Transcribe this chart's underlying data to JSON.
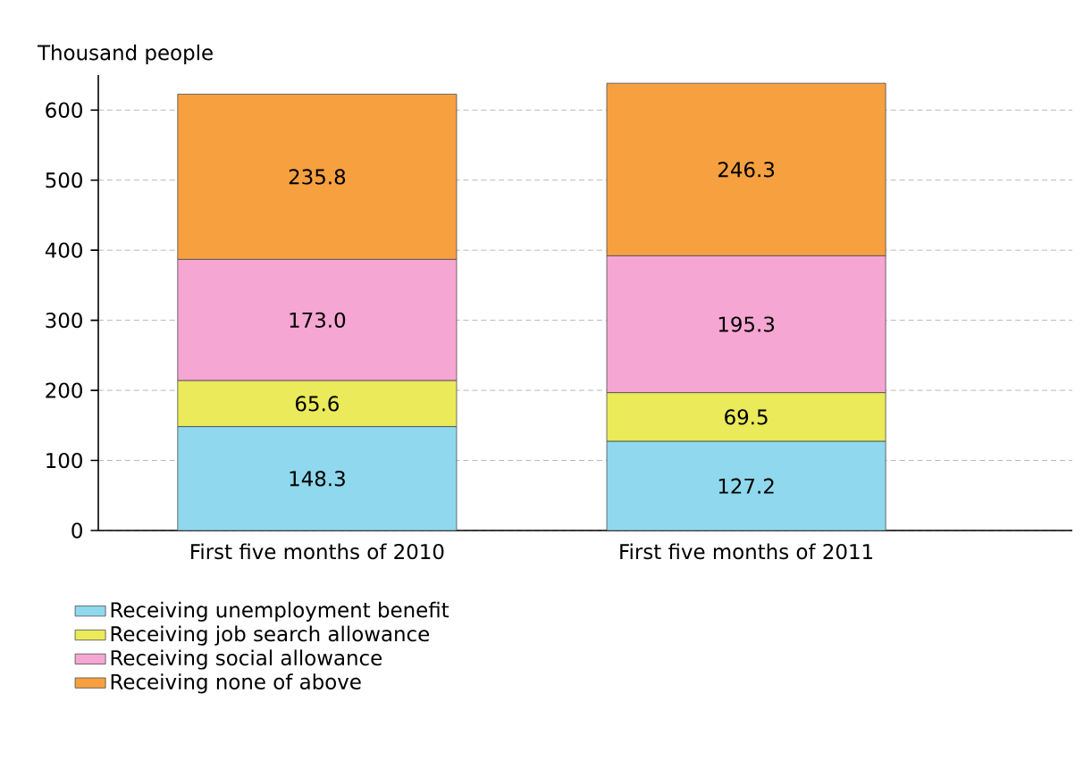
{
  "chart_data": {
    "type": "bar",
    "stacked": true,
    "ylabel": "Thousand people",
    "categories": [
      "First five months of 2010",
      "First five months of 2011"
    ],
    "series": [
      {
        "name": "Receiving unemployment benefit",
        "color": "#8fd8ee",
        "values": [
          148.3,
          127.2
        ],
        "value_labels": [
          "148.3",
          "127.2"
        ]
      },
      {
        "name": "Receiving job search allowance",
        "color": "#eaea5a",
        "values": [
          65.6,
          69.5
        ],
        "value_labels": [
          "65.6",
          "69.5"
        ]
      },
      {
        "name": "Receiving social allowance",
        "color": "#f6a6d2",
        "values": [
          173.0,
          195.3
        ],
        "value_labels": [
          "173.0",
          "195.3"
        ]
      },
      {
        "name": "Receiving none of above",
        "color": "#f7a040",
        "values": [
          235.8,
          246.3
        ],
        "value_labels": [
          "235.8",
          "246.3"
        ]
      }
    ],
    "ylim": [
      0,
      650
    ],
    "yticks": [
      0,
      100,
      200,
      300,
      400,
      500,
      600
    ],
    "grid": "y",
    "legend": "bottom"
  }
}
